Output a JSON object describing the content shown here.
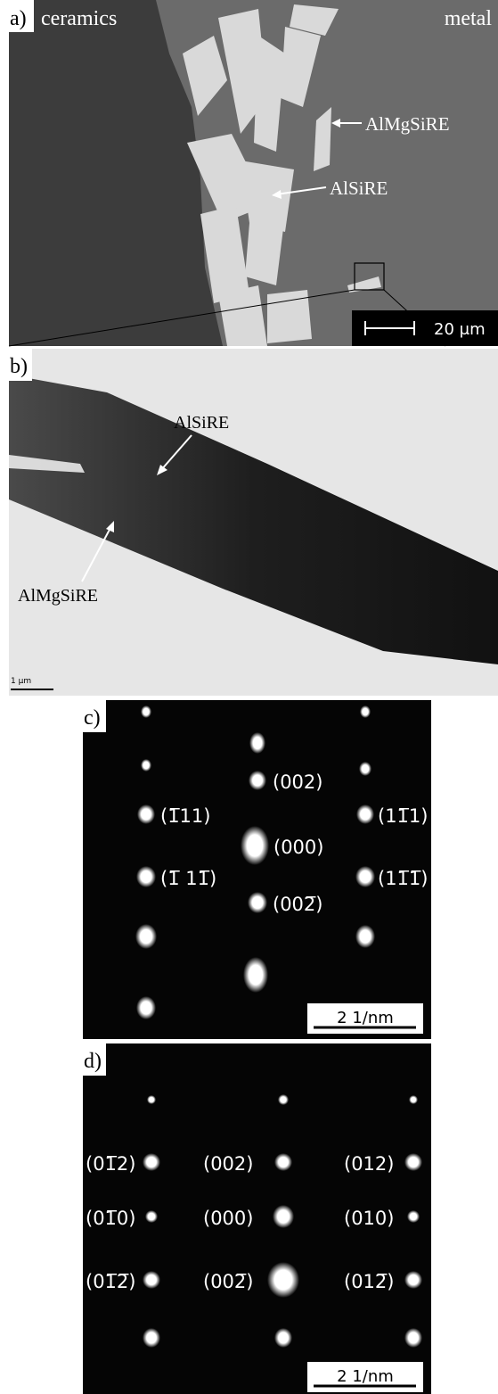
{
  "panels": [
    {
      "label": "a)",
      "annotations": [
        "ceramics",
        "metal",
        "AlMgSiRE",
        "AlSiRE"
      ],
      "scale_bar": "20 μm"
    },
    {
      "label": "b)",
      "annotations": [
        "AlSiRE",
        "AlMgSiRE"
      ],
      "scale_bar": "1 μm"
    },
    {
      "label": "c)",
      "annotations": [
        "(002)",
        "(1̅11)",
        "(000)",
        "(11̅1)",
        "(1̅ 11̅)",
        "(11̅1̅)",
        "(002̅)"
      ],
      "scale_bar": "2 1/nm"
    },
    {
      "label": "d)",
      "annotations": [
        "(01̅2)",
        "(002)",
        "(012)",
        "(01̅0)",
        "(000)",
        "(010)",
        "(01̅2̅)",
        "(002̅)",
        "(012̅)"
      ],
      "scale_bar": "2 1/nm"
    }
  ]
}
